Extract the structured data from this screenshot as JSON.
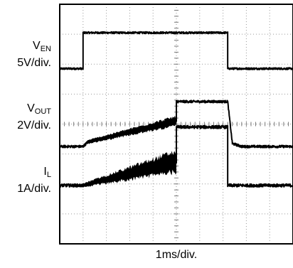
{
  "chart_data": {
    "type": "line",
    "title": "",
    "xlabel": "1ms/div.",
    "x_divisions": 10,
    "y_divisions": 8,
    "xlim_div": [
      0,
      10
    ],
    "grid": true,
    "series": [
      {
        "name": "VEN",
        "name_main": "V",
        "name_sub": "EN",
        "scale": "5V/div.",
        "baseline_div": 5.85,
        "points": [
          [
            0,
            0
          ],
          [
            1.0,
            0
          ],
          [
            1.0,
            1.2
          ],
          [
            7.2,
            1.2
          ],
          [
            7.2,
            0
          ],
          [
            10,
            0
          ]
        ],
        "noise_div": 0.03
      },
      {
        "name": "VOUT",
        "name_main": "V",
        "name_sub": "OUT",
        "scale": "2V/div.",
        "baseline_div": 3.25,
        "points": [
          [
            0,
            0
          ],
          [
            1.0,
            0
          ],
          [
            1.2,
            0.15
          ],
          [
            5.0,
            0.85
          ],
          [
            5.0,
            1.5
          ],
          [
            7.2,
            1.5
          ],
          [
            7.4,
            0.1
          ],
          [
            7.8,
            0
          ],
          [
            10,
            0
          ]
        ],
        "noise_div": 0.04,
        "ramp_band_div": [
          1.2,
          5.0,
          0.08,
          0.2
        ]
      },
      {
        "name": "IL",
        "name_main": "I",
        "name_sub": "L",
        "scale": "1A/div.",
        "baseline_div": 1.95,
        "points": [
          [
            0,
            0
          ],
          [
            1.0,
            0
          ],
          [
            5.0,
            0.8
          ],
          [
            5.0,
            1.95
          ],
          [
            7.2,
            1.95
          ],
          [
            7.2,
            0
          ],
          [
            10,
            0
          ]
        ],
        "noise_div": 0.05,
        "ramp_band_div": [
          1.0,
          5.0,
          0.08,
          0.45
        ]
      }
    ]
  }
}
